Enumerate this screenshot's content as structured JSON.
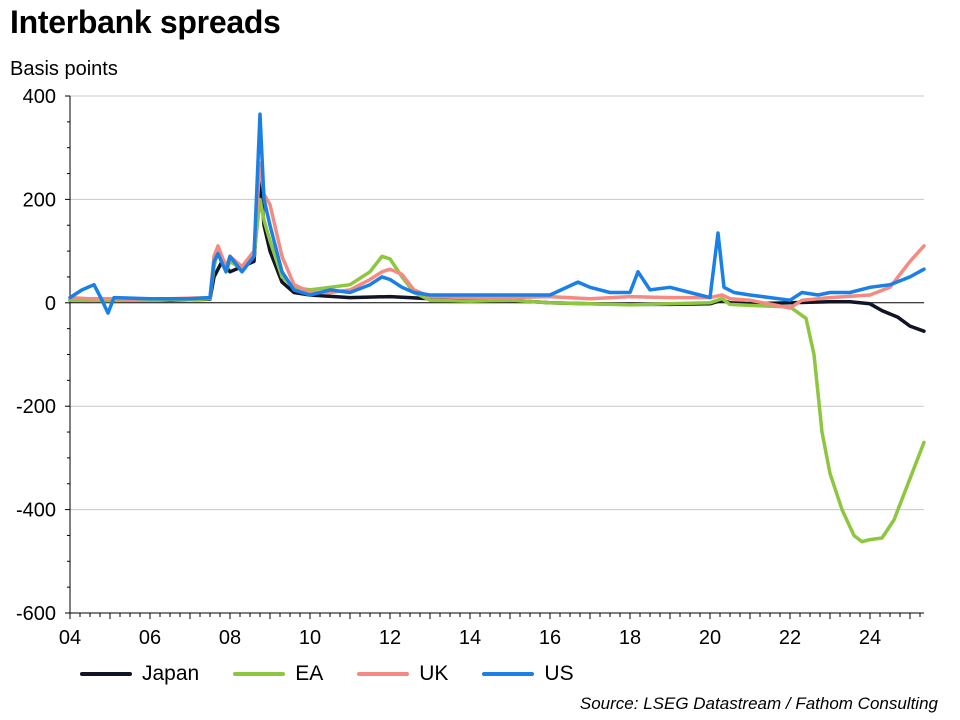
{
  "chart_data": {
    "type": "line",
    "title": "Interbank spreads",
    "subtitle": "Basis points",
    "source": "Source: LSEG Datastream / Fathom Consulting",
    "ylim": [
      -600,
      400
    ],
    "xlim": [
      2004.0,
      2025.35
    ],
    "y_ticks": [
      {
        "value": 400,
        "label": "400"
      },
      {
        "value": 200,
        "label": "200"
      },
      {
        "value": 0,
        "label": "0"
      },
      {
        "value": -200,
        "label": "-200"
      },
      {
        "value": -400,
        "label": "-400"
      },
      {
        "value": -600,
        "label": "-600"
      }
    ],
    "x_ticks": [
      {
        "value": 2004,
        "label": "04"
      },
      {
        "value": 2006,
        "label": "06"
      },
      {
        "value": 2008,
        "label": "08"
      },
      {
        "value": 2010,
        "label": "10"
      },
      {
        "value": 2012,
        "label": "12"
      },
      {
        "value": 2014,
        "label": "14"
      },
      {
        "value": 2016,
        "label": "16"
      },
      {
        "value": 2018,
        "label": "18"
      },
      {
        "value": 2020,
        "label": "20"
      },
      {
        "value": 2022,
        "label": "22"
      },
      {
        "value": 2024,
        "label": "24"
      }
    ],
    "grid": true,
    "legend_position": "bottom",
    "series": [
      {
        "name": "Japan",
        "color": "#111425",
        "points": [
          [
            2004.0,
            5
          ],
          [
            2004.5,
            6
          ],
          [
            2005.0,
            5
          ],
          [
            2005.5,
            5
          ],
          [
            2006.0,
            6
          ],
          [
            2006.5,
            5
          ],
          [
            2007.0,
            6
          ],
          [
            2007.5,
            7
          ],
          [
            2007.6,
            50
          ],
          [
            2007.8,
            80
          ],
          [
            2008.0,
            60
          ],
          [
            2008.3,
            70
          ],
          [
            2008.6,
            80
          ],
          [
            2008.75,
            240
          ],
          [
            2008.85,
            150
          ],
          [
            2009.0,
            100
          ],
          [
            2009.3,
            40
          ],
          [
            2009.6,
            20
          ],
          [
            2010.0,
            15
          ],
          [
            2011.0,
            10
          ],
          [
            2012.0,
            12
          ],
          [
            2012.5,
            10
          ],
          [
            2013.0,
            8
          ],
          [
            2014.0,
            6
          ],
          [
            2015.0,
            5
          ],
          [
            2016.0,
            0
          ],
          [
            2017.0,
            -2
          ],
          [
            2018.0,
            -3
          ],
          [
            2019.0,
            -3
          ],
          [
            2020.0,
            -2
          ],
          [
            2020.3,
            5
          ],
          [
            2020.5,
            0
          ],
          [
            2021.0,
            -2
          ],
          [
            2022.0,
            0
          ],
          [
            2023.0,
            2
          ],
          [
            2023.5,
            2
          ],
          [
            2024.0,
            -2
          ],
          [
            2024.3,
            -15
          ],
          [
            2024.7,
            -28
          ],
          [
            2025.0,
            -45
          ],
          [
            2025.35,
            -55
          ]
        ]
      },
      {
        "name": "EA",
        "color": "#8dc63f",
        "points": [
          [
            2004.0,
            5
          ],
          [
            2004.5,
            5
          ],
          [
            2005.0,
            4
          ],
          [
            2005.5,
            5
          ],
          [
            2006.0,
            5
          ],
          [
            2006.5,
            6
          ],
          [
            2007.0,
            6
          ],
          [
            2007.5,
            8
          ],
          [
            2007.6,
            70
          ],
          [
            2007.7,
            100
          ],
          [
            2007.9,
            60
          ],
          [
            2008.0,
            80
          ],
          [
            2008.3,
            65
          ],
          [
            2008.6,
            90
          ],
          [
            2008.75,
            200
          ],
          [
            2008.85,
            160
          ],
          [
            2009.0,
            120
          ],
          [
            2009.3,
            50
          ],
          [
            2009.6,
            30
          ],
          [
            2010.0,
            25
          ],
          [
            2010.5,
            30
          ],
          [
            2011.0,
            35
          ],
          [
            2011.5,
            60
          ],
          [
            2011.8,
            90
          ],
          [
            2012.0,
            85
          ],
          [
            2012.3,
            50
          ],
          [
            2012.6,
            20
          ],
          [
            2013.0,
            5
          ],
          [
            2014.0,
            3
          ],
          [
            2015.0,
            5
          ],
          [
            2016.0,
            0
          ],
          [
            2017.0,
            -2
          ],
          [
            2018.0,
            -4
          ],
          [
            2019.0,
            -2
          ],
          [
            2020.0,
            0
          ],
          [
            2020.3,
            8
          ],
          [
            2020.5,
            -3
          ],
          [
            2021.0,
            -5
          ],
          [
            2022.0,
            -8
          ],
          [
            2022.4,
            -30
          ],
          [
            2022.6,
            -100
          ],
          [
            2022.8,
            -250
          ],
          [
            2023.0,
            -330
          ],
          [
            2023.3,
            -400
          ],
          [
            2023.6,
            -450
          ],
          [
            2023.8,
            -462
          ],
          [
            2024.0,
            -458
          ],
          [
            2024.3,
            -455
          ],
          [
            2024.6,
            -420
          ],
          [
            2024.9,
            -360
          ],
          [
            2025.1,
            -320
          ],
          [
            2025.35,
            -270
          ]
        ]
      },
      {
        "name": "UK",
        "color": "#f58a82",
        "points": [
          [
            2004.0,
            10
          ],
          [
            2004.5,
            8
          ],
          [
            2005.0,
            8
          ],
          [
            2005.5,
            7
          ],
          [
            2006.0,
            8
          ],
          [
            2006.5,
            8
          ],
          [
            2007.0,
            9
          ],
          [
            2007.5,
            10
          ],
          [
            2007.6,
            90
          ],
          [
            2007.7,
            110
          ],
          [
            2007.9,
            70
          ],
          [
            2008.0,
            90
          ],
          [
            2008.3,
            70
          ],
          [
            2008.6,
            100
          ],
          [
            2008.75,
            270
          ],
          [
            2008.85,
            210
          ],
          [
            2009.0,
            190
          ],
          [
            2009.3,
            90
          ],
          [
            2009.6,
            35
          ],
          [
            2010.0,
            20
          ],
          [
            2010.5,
            20
          ],
          [
            2011.0,
            25
          ],
          [
            2011.5,
            45
          ],
          [
            2011.8,
            60
          ],
          [
            2012.0,
            65
          ],
          [
            2012.3,
            55
          ],
          [
            2012.6,
            25
          ],
          [
            2013.0,
            12
          ],
          [
            2014.0,
            10
          ],
          [
            2015.0,
            10
          ],
          [
            2016.0,
            12
          ],
          [
            2017.0,
            8
          ],
          [
            2018.0,
            12
          ],
          [
            2019.0,
            10
          ],
          [
            2020.0,
            10
          ],
          [
            2020.3,
            15
          ],
          [
            2020.5,
            8
          ],
          [
            2021.0,
            5
          ],
          [
            2022.0,
            -10
          ],
          [
            2022.3,
            5
          ],
          [
            2023.0,
            10
          ],
          [
            2024.0,
            15
          ],
          [
            2024.5,
            30
          ],
          [
            2025.0,
            80
          ],
          [
            2025.35,
            110
          ]
        ]
      },
      {
        "name": "US",
        "color": "#1a80e6",
        "points": [
          [
            2004.0,
            10
          ],
          [
            2004.3,
            25
          ],
          [
            2004.6,
            35
          ],
          [
            2004.8,
            5
          ],
          [
            2004.95,
            -20
          ],
          [
            2005.1,
            10
          ],
          [
            2006.0,
            8
          ],
          [
            2006.5,
            8
          ],
          [
            2007.0,
            8
          ],
          [
            2007.5,
            10
          ],
          [
            2007.6,
            80
          ],
          [
            2007.7,
            95
          ],
          [
            2007.9,
            60
          ],
          [
            2008.0,
            90
          ],
          [
            2008.3,
            60
          ],
          [
            2008.6,
            90
          ],
          [
            2008.75,
            365
          ],
          [
            2008.85,
            200
          ],
          [
            2009.0,
            150
          ],
          [
            2009.3,
            60
          ],
          [
            2009.6,
            25
          ],
          [
            2010.0,
            15
          ],
          [
            2010.5,
            25
          ],
          [
            2011.0,
            20
          ],
          [
            2011.5,
            35
          ],
          [
            2011.8,
            50
          ],
          [
            2012.0,
            45
          ],
          [
            2012.3,
            30
          ],
          [
            2012.6,
            20
          ],
          [
            2013.0,
            15
          ],
          [
            2014.0,
            15
          ],
          [
            2015.0,
            15
          ],
          [
            2016.0,
            15
          ],
          [
            2016.7,
            40
          ],
          [
            2017.0,
            30
          ],
          [
            2017.5,
            20
          ],
          [
            2018.0,
            20
          ],
          [
            2018.2,
            60
          ],
          [
            2018.5,
            25
          ],
          [
            2019.0,
            30
          ],
          [
            2019.5,
            20
          ],
          [
            2020.0,
            10
          ],
          [
            2020.2,
            135
          ],
          [
            2020.35,
            30
          ],
          [
            2020.6,
            20
          ],
          [
            2021.0,
            15
          ],
          [
            2021.5,
            10
          ],
          [
            2022.0,
            5
          ],
          [
            2022.3,
            20
          ],
          [
            2022.7,
            15
          ],
          [
            2023.0,
            20
          ],
          [
            2023.5,
            20
          ],
          [
            2024.0,
            30
          ],
          [
            2024.5,
            35
          ],
          [
            2025.0,
            50
          ],
          [
            2025.35,
            65
          ]
        ]
      }
    ]
  }
}
